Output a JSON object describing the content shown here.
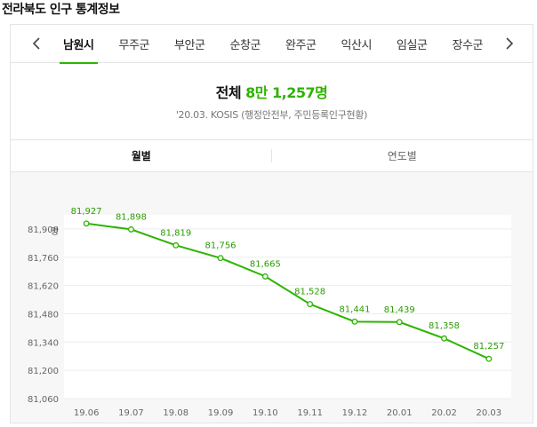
{
  "page": {
    "title": "전라북도 인구 통계정보"
  },
  "nav": {
    "prev_icon": "chevron-left-icon",
    "next_icon": "chevron-right-icon",
    "tabs": [
      {
        "label": "남원시",
        "active": true
      },
      {
        "label": "무주군",
        "active": false
      },
      {
        "label": "부안군",
        "active": false
      },
      {
        "label": "순창군",
        "active": false
      },
      {
        "label": "완주군",
        "active": false
      },
      {
        "label": "익산시",
        "active": false
      },
      {
        "label": "임실군",
        "active": false
      },
      {
        "label": "장수군",
        "active": false
      }
    ]
  },
  "summary": {
    "label": "전체",
    "value": "8만 1,257명",
    "source": "'20.03. KOSIS (행정안전부, 주민등록인구현황)"
  },
  "period_tabs": [
    {
      "label": "월별",
      "active": true
    },
    {
      "label": "연도별",
      "active": false
    }
  ],
  "colors": {
    "accent": "#2db400",
    "line": "#2db400",
    "label": "#2a9d00"
  },
  "chart_data": {
    "type": "line",
    "unit": "명",
    "categories": [
      "19.06",
      "19.07",
      "19.08",
      "19.09",
      "19.10",
      "19.11",
      "19.12",
      "20.01",
      "20.02",
      "20.03"
    ],
    "values": [
      81927,
      81898,
      81819,
      81756,
      81665,
      81528,
      81441,
      81439,
      81358,
      81257
    ],
    "value_labels": [
      "81,927",
      "81,898",
      "81,819",
      "81,756",
      "81,665",
      "81,528",
      "81,441",
      "81,439",
      "81,358",
      "81,257"
    ],
    "yticks": [
      "81,900",
      "81,760",
      "81,620",
      "81,480",
      "81,340",
      "81,200",
      "81,060"
    ],
    "ytick_values": [
      81900,
      81760,
      81620,
      81480,
      81340,
      81200,
      81060
    ],
    "ylim": [
      81060,
      81970
    ],
    "grid": true
  }
}
